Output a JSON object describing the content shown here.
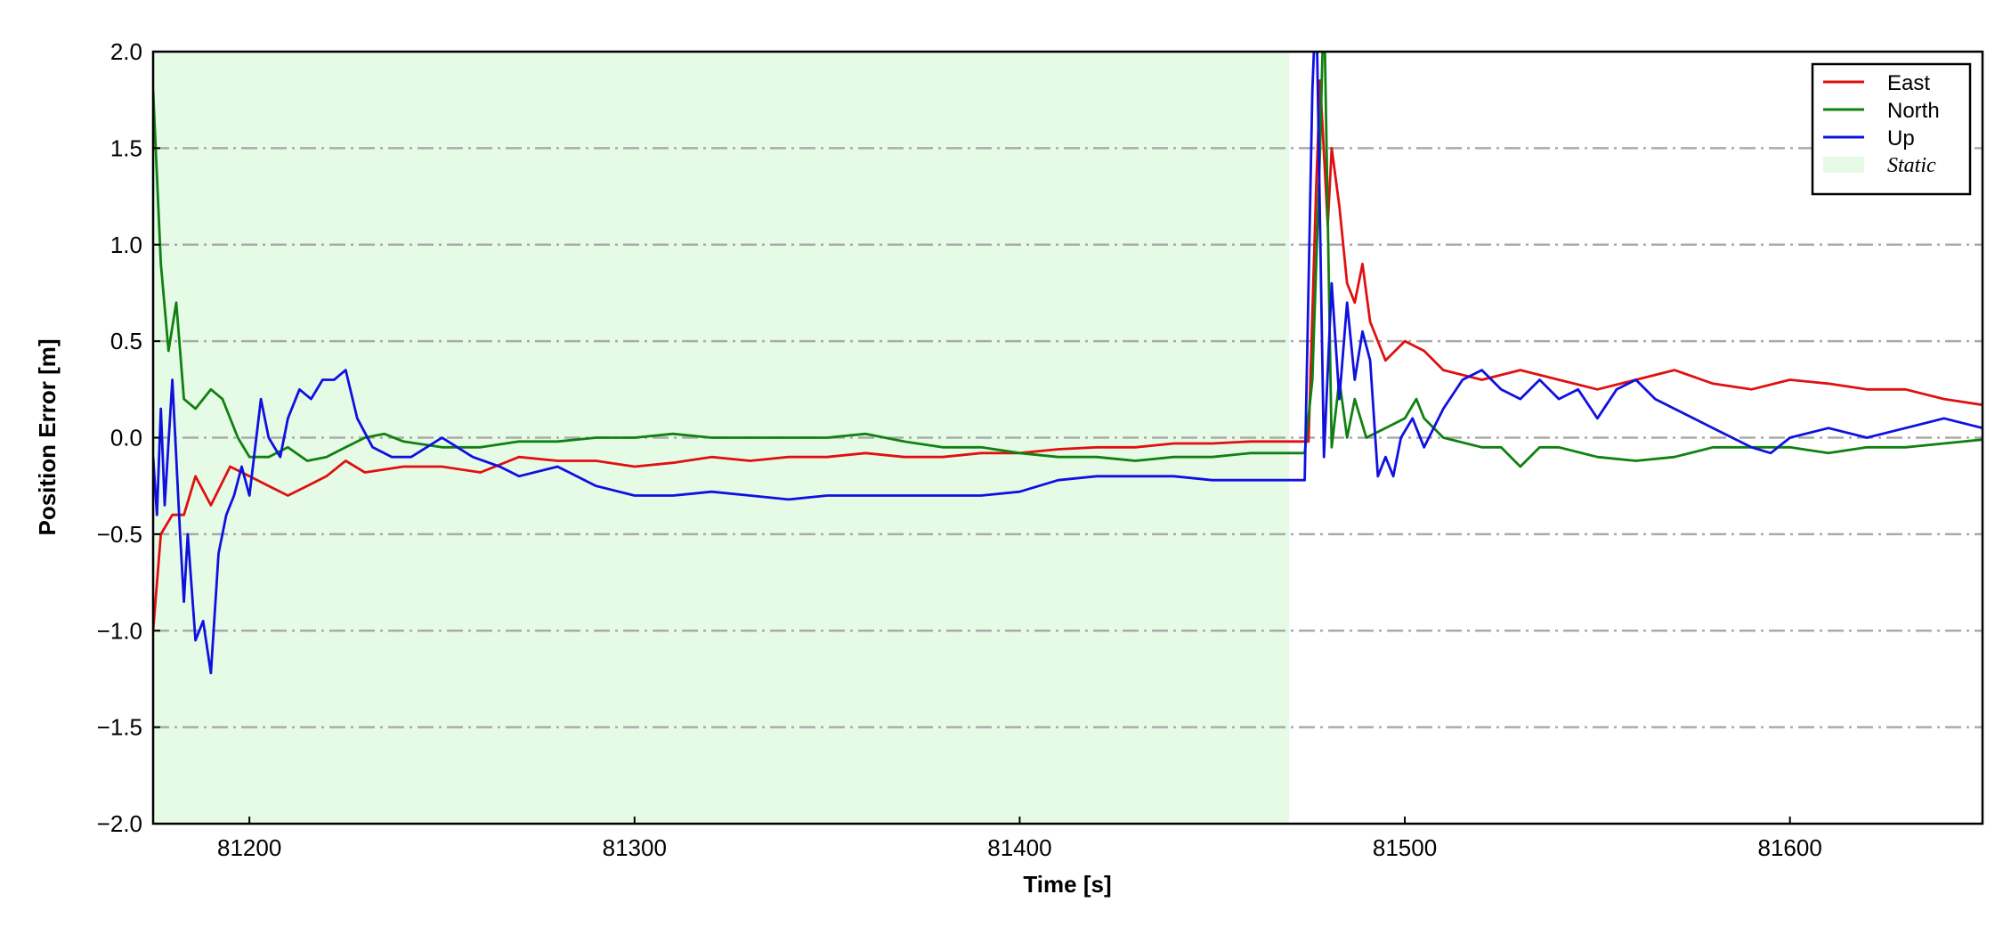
{
  "chart_data": {
    "type": "line",
    "xlabel": "Time [s]",
    "ylabel": "Position Error [m]",
    "xlim": [
      81175,
      81650
    ],
    "ylim": [
      -2,
      2
    ],
    "xticks": [
      81200,
      81300,
      81400,
      81500,
      81600
    ],
    "yticks": [
      {
        "value": -2,
        "label": "−2.0"
      },
      {
        "value": -1.5,
        "label": "−1.5"
      },
      {
        "value": -1,
        "label": "−1.0"
      },
      {
        "value": -0.5,
        "label": "−0.5"
      },
      {
        "value": 0,
        "label": "0.0"
      },
      0.5,
      {
        "value": 1,
        "label": "1.0"
      },
      1.5,
      {
        "value": 2,
        "label": "2.0"
      }
    ],
    "grid": true,
    "legend": "upper right",
    "shaded_region": {
      "label": "Static",
      "x": [
        81175,
        81470
      ],
      "color": "#e6fbe6"
    },
    "series": [
      {
        "name": "East",
        "color": "#e01010",
        "x": [
          81175,
          81177,
          81180,
          81183,
          81186,
          81190,
          81195,
          81200,
          81205,
          81210,
          81215,
          81220,
          81225,
          81230,
          81240,
          81250,
          81260,
          81270,
          81280,
          81290,
          81300,
          81310,
          81320,
          81330,
          81340,
          81350,
          81360,
          81370,
          81380,
          81390,
          81400,
          81410,
          81420,
          81430,
          81440,
          81450,
          81460,
          81470,
          81475,
          81477,
          81478,
          81480,
          81481,
          81483,
          81485,
          81487,
          81489,
          81491,
          81495,
          81500,
          81505,
          81510,
          81520,
          81530,
          81540,
          81550,
          81560,
          81570,
          81580,
          81590,
          81600,
          81610,
          81620,
          81630,
          81640,
          81650
        ],
        "values": [
          -1.0,
          -0.5,
          -0.4,
          -0.4,
          -0.2,
          -0.35,
          -0.15,
          -0.2,
          -0.25,
          -0.3,
          -0.25,
          -0.2,
          -0.12,
          -0.18,
          -0.15,
          -0.15,
          -0.18,
          -0.1,
          -0.12,
          -0.12,
          -0.15,
          -0.13,
          -0.1,
          -0.12,
          -0.1,
          -0.1,
          -0.08,
          -0.1,
          -0.1,
          -0.08,
          -0.08,
          -0.06,
          -0.05,
          -0.05,
          -0.03,
          -0.03,
          -0.02,
          -0.02,
          -0.02,
          1.3,
          1.85,
          1.1,
          1.5,
          1.2,
          0.8,
          0.7,
          0.9,
          0.6,
          0.4,
          0.5,
          0.45,
          0.35,
          0.3,
          0.35,
          0.3,
          0.25,
          0.3,
          0.35,
          0.28,
          0.25,
          0.3,
          0.28,
          0.25,
          0.25,
          0.2,
          0.17
        ]
      },
      {
        "name": "North",
        "color": "#108010",
        "x": [
          81175,
          81177,
          81179,
          81181,
          81183,
          81186,
          81190,
          81193,
          81197,
          81200,
          81205,
          81210,
          81215,
          81220,
          81225,
          81230,
          81235,
          81240,
          81250,
          81260,
          81270,
          81280,
          81290,
          81300,
          81310,
          81320,
          81330,
          81340,
          81350,
          81360,
          81370,
          81380,
          81390,
          81400,
          81410,
          81420,
          81430,
          81440,
          81450,
          81460,
          81470,
          81474,
          81476,
          81478,
          81479,
          81481,
          81483,
          81485,
          81487,
          81490,
          81495,
          81500,
          81503,
          81505,
          81510,
          81520,
          81525,
          81530,
          81535,
          81540,
          81550,
          81560,
          81570,
          81580,
          81590,
          81600,
          81610,
          81620,
          81630,
          81640,
          81650
        ],
        "values": [
          1.8,
          0.9,
          0.45,
          0.7,
          0.2,
          0.15,
          0.25,
          0.2,
          0.0,
          -0.1,
          -0.1,
          -0.05,
          -0.12,
          -0.1,
          -0.05,
          0.0,
          0.02,
          -0.02,
          -0.05,
          -0.05,
          -0.02,
          -0.02,
          0.0,
          0.0,
          0.02,
          0.0,
          0.0,
          0.0,
          0.0,
          0.02,
          -0.02,
          -0.05,
          -0.05,
          -0.08,
          -0.1,
          -0.1,
          -0.12,
          -0.1,
          -0.1,
          -0.08,
          -0.08,
          -0.08,
          0.3,
          1.5,
          2.3,
          -0.05,
          0.3,
          0.0,
          0.2,
          0.0,
          0.05,
          0.1,
          0.2,
          0.1,
          0.0,
          -0.05,
          -0.05,
          -0.15,
          -0.05,
          -0.05,
          -0.1,
          -0.12,
          -0.1,
          -0.05,
          -0.05,
          -0.05,
          -0.08,
          -0.05,
          -0.05,
          -0.03,
          -0.01
        ]
      },
      {
        "name": "Up",
        "color": "#1010e0",
        "x": [
          81175,
          81176,
          81177,
          81178,
          81180,
          81182,
          81183,
          81184,
          81186,
          81188,
          81190,
          81192,
          81194,
          81196,
          81198,
          81200,
          81203,
          81205,
          81208,
          81210,
          81213,
          81216,
          81219,
          81222,
          81225,
          81228,
          81232,
          81237,
          81242,
          81250,
          81258,
          81265,
          81270,
          81280,
          81290,
          81300,
          81310,
          81320,
          81330,
          81340,
          81350,
          81360,
          81370,
          81380,
          81390,
          81400,
          81410,
          81420,
          81430,
          81440,
          81450,
          81460,
          81474,
          81476,
          81477,
          81479,
          81481,
          81483,
          81485,
          81487,
          81489,
          81491,
          81493,
          81495,
          81497,
          81499,
          81502,
          81505,
          81510,
          81515,
          81520,
          81525,
          81530,
          81535,
          81540,
          81545,
          81550,
          81555,
          81560,
          81565,
          81570,
          81580,
          81590,
          81595,
          81600,
          81610,
          81620,
          81630,
          81640,
          81650
        ],
        "values": [
          -0.1,
          -0.4,
          0.15,
          -0.35,
          0.3,
          -0.5,
          -0.85,
          -0.5,
          -1.05,
          -0.95,
          -1.22,
          -0.6,
          -0.4,
          -0.3,
          -0.15,
          -0.3,
          0.2,
          0.0,
          -0.1,
          0.1,
          0.25,
          0.2,
          0.3,
          0.3,
          0.35,
          0.1,
          -0.05,
          -0.1,
          -0.1,
          0.0,
          -0.1,
          -0.15,
          -0.2,
          -0.15,
          -0.25,
          -0.3,
          -0.3,
          -0.28,
          -0.3,
          -0.32,
          -0.3,
          -0.3,
          -0.3,
          -0.3,
          -0.3,
          -0.28,
          -0.22,
          -0.2,
          -0.2,
          -0.2,
          -0.22,
          -0.22,
          -0.22,
          1.8,
          2.3,
          -0.1,
          0.8,
          0.2,
          0.7,
          0.3,
          0.55,
          0.4,
          -0.2,
          -0.1,
          -0.2,
          0.0,
          0.1,
          -0.05,
          0.15,
          0.3,
          0.35,
          0.25,
          0.2,
          0.3,
          0.2,
          0.25,
          0.1,
          0.25,
          0.3,
          0.2,
          0.15,
          0.05,
          -0.05,
          -0.08,
          0.0,
          0.05,
          0.0,
          0.05,
          0.1,
          0.05
        ]
      }
    ]
  }
}
